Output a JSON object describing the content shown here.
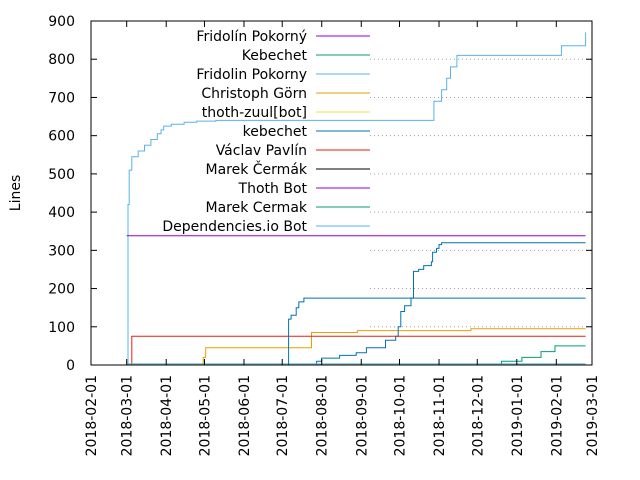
{
  "chart_data": {
    "type": "line",
    "ylabel": "Lines",
    "xlabel": "",
    "ylim": [
      0,
      900
    ],
    "xlim": [
      "2018-02-01",
      "2019-03-01"
    ],
    "y_ticks": [
      0,
      100,
      200,
      300,
      400,
      500,
      600,
      700,
      800,
      900
    ],
    "x_ticks": [
      "2018-02-01",
      "2018-03-01",
      "2018-04-01",
      "2018-05-01",
      "2018-06-01",
      "2018-07-01",
      "2018-08-01",
      "2018-09-01",
      "2018-10-01",
      "2018-11-01",
      "2018-12-01",
      "2019-01-01",
      "2019-02-01",
      "2019-03-01"
    ],
    "grid": "dotted horizontal lines at y ticks, right of legend",
    "legend_position": "top-left",
    "series": [
      {
        "name": "Fridolín Pokorný",
        "color": "#9400d3",
        "step": true,
        "points": [
          [
            "2018-03-02",
            0
          ],
          [
            "2018-03-03",
            0
          ],
          [
            "2019-02-24",
            0
          ]
        ]
      },
      {
        "name": "Kebechet",
        "color": "#009e73",
        "step": true,
        "points": [
          [
            "2018-03-02",
            0
          ],
          [
            "2019-02-24",
            0
          ]
        ]
      },
      {
        "name": "Fridolin Pokorny",
        "color": "#56b4e9",
        "step": true,
        "points": [
          [
            "2018-03-02",
            0
          ],
          [
            "2018-03-02",
            420
          ],
          [
            "2018-03-03",
            510
          ],
          [
            "2018-03-05",
            545
          ],
          [
            "2018-03-10",
            560
          ],
          [
            "2018-03-15",
            575
          ],
          [
            "2018-03-20",
            590
          ],
          [
            "2018-03-25",
            605
          ],
          [
            "2018-03-28",
            615
          ],
          [
            "2018-03-30",
            625
          ],
          [
            "2018-04-05",
            630
          ],
          [
            "2018-04-15",
            635
          ],
          [
            "2018-04-25",
            638
          ],
          [
            "2018-05-10",
            640
          ],
          [
            "2018-10-28",
            640
          ],
          [
            "2018-10-28",
            690
          ],
          [
            "2018-11-03",
            720
          ],
          [
            "2018-11-07",
            750
          ],
          [
            "2018-11-10",
            780
          ],
          [
            "2018-11-15",
            810
          ],
          [
            "2019-01-27",
            810
          ],
          [
            "2019-02-05",
            835
          ],
          [
            "2019-02-24",
            870
          ]
        ]
      },
      {
        "name": "Christoph Görn",
        "color": "#e69f00",
        "step": true,
        "points": [
          [
            "2018-04-28",
            0
          ],
          [
            "2018-04-30",
            20
          ],
          [
            "2018-05-02",
            45
          ],
          [
            "2018-07-22",
            45
          ],
          [
            "2018-07-24",
            85
          ],
          [
            "2018-08-28",
            85
          ],
          [
            "2018-08-29",
            90
          ],
          [
            "2018-11-25",
            90
          ],
          [
            "2018-11-26",
            95
          ],
          [
            "2019-02-24",
            95
          ]
        ]
      },
      {
        "name": "thoth-zuul[bot]",
        "color": "#f0e442",
        "step": true,
        "points": [
          [
            "2018-03-01",
            2
          ],
          [
            "2019-02-24",
            2
          ]
        ]
      },
      {
        "name": "kebechet",
        "color": "#0072b2",
        "step": true,
        "points": [
          [
            "2018-07-05",
            0
          ],
          [
            "2018-07-25",
            0
          ],
          [
            "2018-07-28",
            10
          ],
          [
            "2018-08-01",
            18
          ],
          [
            "2018-08-15",
            25
          ],
          [
            "2018-08-28",
            32
          ],
          [
            "2018-09-05",
            45
          ],
          [
            "2018-09-20",
            65
          ],
          [
            "2018-09-28",
            75
          ],
          [
            "2018-09-30",
            100
          ],
          [
            "2018-10-02",
            140
          ],
          [
            "2018-10-05",
            155
          ],
          [
            "2018-10-10",
            175
          ],
          [
            "2018-10-12",
            245
          ],
          [
            "2018-10-16",
            250
          ],
          [
            "2018-10-20",
            260
          ],
          [
            "2018-10-26",
            270
          ],
          [
            "2018-10-27",
            295
          ],
          [
            "2018-10-30",
            305
          ],
          [
            "2018-11-01",
            315
          ],
          [
            "2018-11-03",
            320
          ],
          [
            "2019-02-24",
            320
          ]
        ]
      },
      {
        "name": "Václav Pavlín",
        "color": "#e51e10",
        "step": true,
        "points": [
          [
            "2018-03-03",
            0
          ],
          [
            "2018-03-05",
            75
          ],
          [
            "2019-02-24",
            75
          ]
        ]
      },
      {
        "name": "Marek Čermák",
        "color": "#000000",
        "step": true,
        "points": [
          [
            "2018-10-28",
            0
          ],
          [
            "2019-02-24",
            0
          ]
        ]
      },
      {
        "name": "Thoth Bot",
        "color": "#9400d3",
        "step": true,
        "points": [
          [
            "2018-03-01",
            338
          ],
          [
            "2019-02-24",
            338
          ]
        ]
      },
      {
        "name": "Marek Cermak",
        "color": "#009e73",
        "step": true,
        "points": [
          [
            "2018-12-05",
            0
          ],
          [
            "2018-12-20",
            10
          ],
          [
            "2019-01-05",
            20
          ],
          [
            "2019-01-20",
            35
          ],
          [
            "2019-01-31",
            50
          ],
          [
            "2019-02-24",
            50
          ]
        ]
      },
      {
        "name": "Dependencies.io Bot",
        "color": "#56b4e9",
        "step": true,
        "points": [
          [
            "2018-03-01",
            3
          ],
          [
            "2019-02-24",
            3
          ]
        ]
      },
      {
        "name": "kebechet (dark)",
        "color": "#0072b2",
        "step": true,
        "legend": false,
        "points": [
          [
            "2018-07-05",
            0
          ],
          [
            "2018-07-06",
            120
          ],
          [
            "2018-07-08",
            130
          ],
          [
            "2018-07-12",
            150
          ],
          [
            "2018-07-14",
            165
          ],
          [
            "2018-07-18",
            175
          ],
          [
            "2019-02-24",
            175
          ]
        ]
      }
    ]
  }
}
